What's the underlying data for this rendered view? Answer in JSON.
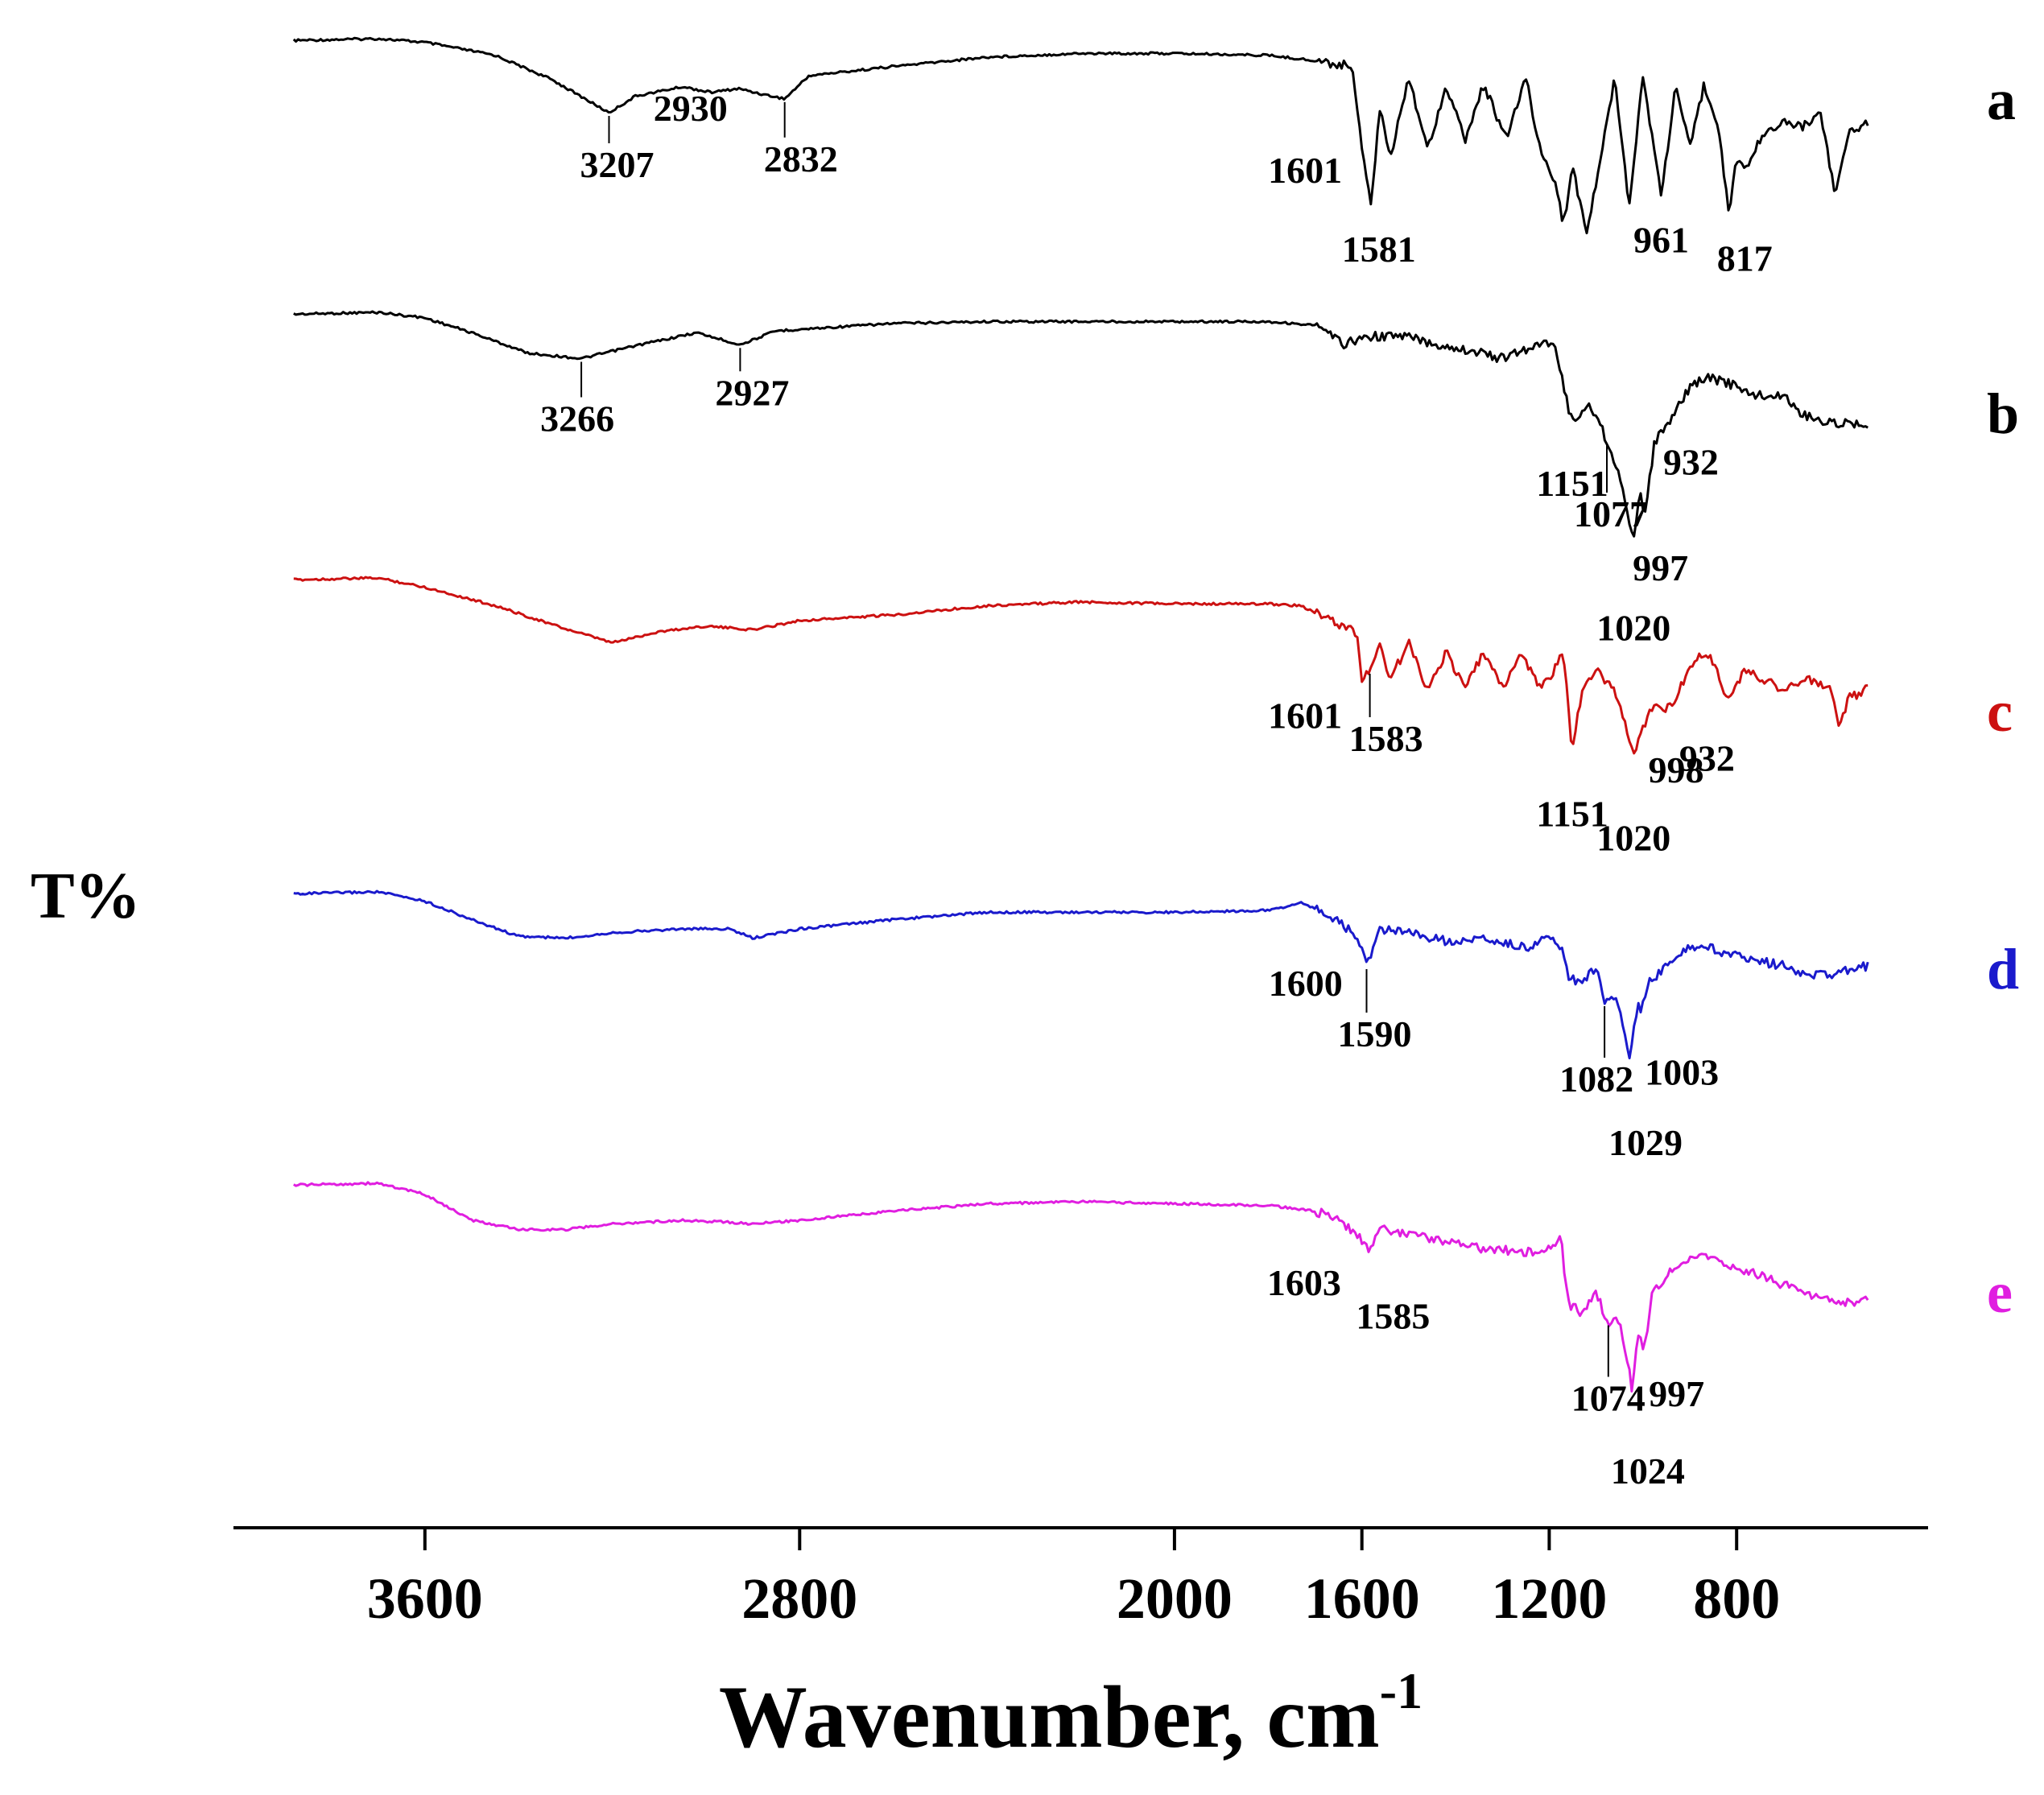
{
  "chart_data": {
    "type": "line",
    "title": "",
    "xlabel": "Wavenumber, cm",
    "xlabel_superscript": "-1",
    "ylabel": "T%",
    "xlim": [
      4000,
      400
    ],
    "x_reversed": true,
    "xticks": [
      3600,
      2800,
      2000,
      1600,
      1200,
      800
    ],
    "xtick_labels": [
      "3600",
      "2800",
      "2000",
      "1600",
      "1200",
      "800"
    ],
    "grid": false,
    "legend": "none",
    "series": [
      {
        "name": "a",
        "color": "#000000",
        "points": [
          [
            3880,
            0.02
          ],
          [
            3700,
            0.0
          ],
          [
            3600,
            0.04
          ],
          [
            3450,
            0.18
          ],
          [
            3330,
            0.44
          ],
          [
            3207,
            0.8
          ],
          [
            3150,
            0.62
          ],
          [
            3050,
            0.52
          ],
          [
            2990,
            0.58
          ],
          [
            2930,
            0.54
          ],
          [
            2880,
            0.6
          ],
          [
            2832,
            0.65
          ],
          [
            2780,
            0.4
          ],
          [
            2600,
            0.3
          ],
          [
            2400,
            0.2
          ],
          [
            2200,
            0.16
          ],
          [
            2000,
            0.16
          ],
          [
            1800,
            0.18
          ],
          [
            1730,
            0.22
          ],
          [
            1620,
            0.3
          ],
          [
            1601,
            1.12
          ],
          [
            1581,
            1.8
          ],
          [
            1560,
            0.7
          ],
          [
            1540,
            1.3
          ],
          [
            1500,
            0.4
          ],
          [
            1460,
            1.2
          ],
          [
            1420,
            0.5
          ],
          [
            1380,
            1.1
          ],
          [
            1340,
            0.5
          ],
          [
            1290,
            1.1
          ],
          [
            1250,
            0.4
          ],
          [
            1220,
            1.2
          ],
          [
            1190,
            1.5
          ],
          [
            1170,
            2.0
          ],
          [
            1150,
            1.4
          ],
          [
            1120,
            2.1
          ],
          [
            1090,
            1.3
          ],
          [
            1060,
            0.4
          ],
          [
            1030,
            1.8
          ],
          [
            1000,
            0.4
          ],
          [
            961,
            1.7
          ],
          [
            930,
            0.5
          ],
          [
            900,
            1.2
          ],
          [
            870,
            0.5
          ],
          [
            840,
            0.9
          ],
          [
            817,
            1.9
          ],
          [
            800,
            1.3
          ],
          [
            780,
            1.4
          ],
          [
            740,
            1.0
          ],
          [
            700,
            0.9
          ],
          [
            660,
            0.95
          ],
          [
            620,
            0.8
          ],
          [
            590,
            1.7
          ],
          [
            560,
            1.0
          ],
          [
            520,
            0.9
          ]
        ],
        "annotations": [
          {
            "label": "3207",
            "x": 3207
          },
          {
            "label": "2930",
            "x": 2930
          },
          {
            "label": "2832",
            "x": 2832
          },
          {
            "label": "1601",
            "x": 1601
          },
          {
            "label": "1581",
            "x": 1581
          },
          {
            "label": "961",
            "x": 961
          },
          {
            "label": "817",
            "x": 817
          }
        ]
      },
      {
        "name": "b",
        "color": "#000000",
        "points": [
          [
            3880,
            0.02
          ],
          [
            3700,
            0.0
          ],
          [
            3600,
            0.06
          ],
          [
            3500,
            0.22
          ],
          [
            3380,
            0.44
          ],
          [
            3266,
            0.5
          ],
          [
            3150,
            0.36
          ],
          [
            3020,
            0.22
          ],
          [
            2927,
            0.35
          ],
          [
            2850,
            0.2
          ],
          [
            2600,
            0.12
          ],
          [
            2400,
            0.1
          ],
          [
            2200,
            0.1
          ],
          [
            2000,
            0.1
          ],
          [
            1800,
            0.1
          ],
          [
            1700,
            0.14
          ],
          [
            1640,
            0.34
          ],
          [
            1580,
            0.26
          ],
          [
            1500,
            0.26
          ],
          [
            1450,
            0.34
          ],
          [
            1380,
            0.4
          ],
          [
            1300,
            0.5
          ],
          [
            1250,
            0.4
          ],
          [
            1190,
            0.3
          ],
          [
            1165,
            0.9
          ],
          [
            1151,
            1.2
          ],
          [
            1120,
            1.0
          ],
          [
            1100,
            1.1
          ],
          [
            1077,
            1.4
          ],
          [
            1060,
            1.6
          ],
          [
            1040,
            2.0
          ],
          [
            1020,
            2.5
          ],
          [
            1005,
            1.9
          ],
          [
            997,
            2.2
          ],
          [
            975,
            1.4
          ],
          [
            932,
            1.1
          ],
          [
            900,
            0.8
          ],
          [
            860,
            0.7
          ],
          [
            800,
            0.8
          ],
          [
            760,
            0.9
          ],
          [
            700,
            0.9
          ],
          [
            660,
            1.1
          ],
          [
            600,
            1.2
          ],
          [
            560,
            1.2
          ],
          [
            520,
            1.2
          ]
        ],
        "annotations": [
          {
            "label": "3266",
            "x": 3266
          },
          {
            "label": "2927",
            "x": 2927
          },
          {
            "label": "1151",
            "x": 1151
          },
          {
            "label": "1077",
            "x": 1077
          },
          {
            "label": "1020",
            "x": 1020
          },
          {
            "label": "997",
            "x": 997
          },
          {
            "label": "932",
            "x": 932
          }
        ]
      },
      {
        "name": "c",
        "color": "#cc1111",
        "points": [
          [
            3880,
            0.02
          ],
          [
            3700,
            0.0
          ],
          [
            3600,
            0.1
          ],
          [
            3450,
            0.3
          ],
          [
            3300,
            0.55
          ],
          [
            3200,
            0.7
          ],
          [
            3100,
            0.58
          ],
          [
            3000,
            0.52
          ],
          [
            2900,
            0.56
          ],
          [
            2800,
            0.46
          ],
          [
            2600,
            0.4
          ],
          [
            2400,
            0.3
          ],
          [
            2200,
            0.26
          ],
          [
            2000,
            0.28
          ],
          [
            1800,
            0.28
          ],
          [
            1730,
            0.3
          ],
          [
            1650,
            0.5
          ],
          [
            1610,
            0.6
          ],
          [
            1601,
            1.1
          ],
          [
            1583,
            1.0
          ],
          [
            1560,
            0.7
          ],
          [
            1540,
            1.1
          ],
          [
            1500,
            0.7
          ],
          [
            1460,
            1.2
          ],
          [
            1420,
            0.8
          ],
          [
            1380,
            1.2
          ],
          [
            1340,
            0.8
          ],
          [
            1300,
            1.2
          ],
          [
            1260,
            0.8
          ],
          [
            1220,
            1.2
          ],
          [
            1190,
            1.0
          ],
          [
            1170,
            0.8
          ],
          [
            1151,
            1.9
          ],
          [
            1130,
            1.2
          ],
          [
            1100,
            1.0
          ],
          [
            1060,
            1.2
          ],
          [
            1020,
            1.9
          ],
          [
            998,
            1.6
          ],
          [
            980,
            1.4
          ],
          [
            950,
            1.4
          ],
          [
            932,
            1.3
          ],
          [
            900,
            1.0
          ],
          [
            880,
            0.8
          ],
          [
            850,
            0.9
          ],
          [
            820,
            1.3
          ],
          [
            780,
            1.0
          ],
          [
            740,
            1.1
          ],
          [
            700,
            1.2
          ],
          [
            650,
            1.1
          ],
          [
            600,
            1.2
          ],
          [
            580,
            1.6
          ],
          [
            560,
            1.3
          ],
          [
            520,
            1.2
          ]
        ],
        "annotations": [
          {
            "label": "1601",
            "x": 1601
          },
          {
            "label": "1583",
            "x": 1583
          },
          {
            "label": "1151",
            "x": 1151
          },
          {
            "label": "1020",
            "x": 1020
          },
          {
            "label": "998",
            "x": 998
          },
          {
            "label": "932",
            "x": 932
          }
        ]
      },
      {
        "name": "d",
        "color": "#1a1acc",
        "points": [
          [
            3880,
            0.02
          ],
          [
            3700,
            0.0
          ],
          [
            3600,
            0.1
          ],
          [
            3500,
            0.3
          ],
          [
            3400,
            0.48
          ],
          [
            3300,
            0.5
          ],
          [
            3200,
            0.44
          ],
          [
            3050,
            0.4
          ],
          [
            2950,
            0.4
          ],
          [
            2900,
            0.5
          ],
          [
            2800,
            0.4
          ],
          [
            2600,
            0.3
          ],
          [
            2400,
            0.22
          ],
          [
            2200,
            0.22
          ],
          [
            2000,
            0.22
          ],
          [
            1800,
            0.2
          ],
          [
            1730,
            0.12
          ],
          [
            1680,
            0.22
          ],
          [
            1630,
            0.4
          ],
          [
            1600,
            0.6
          ],
          [
            1590,
            0.8
          ],
          [
            1560,
            0.4
          ],
          [
            1500,
            0.45
          ],
          [
            1450,
            0.5
          ],
          [
            1400,
            0.55
          ],
          [
            1350,
            0.5
          ],
          [
            1300,
            0.55
          ],
          [
            1250,
            0.6
          ],
          [
            1200,
            0.5
          ],
          [
            1175,
            0.6
          ],
          [
            1160,
            0.9
          ],
          [
            1130,
            1.0
          ],
          [
            1100,
            0.8
          ],
          [
            1082,
            1.2
          ],
          [
            1060,
            1.1
          ],
          [
            1040,
            1.5
          ],
          [
            1029,
            1.8
          ],
          [
            1010,
            1.2
          ],
          [
            1003,
            1.3
          ],
          [
            990,
            1.0
          ],
          [
            950,
            0.8
          ],
          [
            900,
            0.6
          ],
          [
            860,
            0.6
          ],
          [
            800,
            0.7
          ],
          [
            750,
            0.75
          ],
          [
            700,
            0.8
          ],
          [
            650,
            0.9
          ],
          [
            600,
            0.9
          ],
          [
            560,
            0.85
          ],
          [
            520,
            0.8
          ]
        ],
        "annotations": [
          {
            "label": "1600",
            "x": 1600
          },
          {
            "label": "1590",
            "x": 1590
          },
          {
            "label": "1082",
            "x": 1082
          },
          {
            "label": "1029",
            "x": 1029
          },
          {
            "label": "1003",
            "x": 1003
          }
        ]
      },
      {
        "name": "e",
        "color": "#e01ee0",
        "points": [
          [
            3880,
            0.02
          ],
          [
            3700,
            0.0
          ],
          [
            3600,
            0.12
          ],
          [
            3500,
            0.4
          ],
          [
            3400,
            0.5
          ],
          [
            3300,
            0.5
          ],
          [
            3200,
            0.44
          ],
          [
            3050,
            0.4
          ],
          [
            2950,
            0.42
          ],
          [
            2900,
            0.44
          ],
          [
            2800,
            0.4
          ],
          [
            2600,
            0.3
          ],
          [
            2400,
            0.22
          ],
          [
            2200,
            0.2
          ],
          [
            2000,
            0.22
          ],
          [
            1800,
            0.24
          ],
          [
            1700,
            0.3
          ],
          [
            1650,
            0.4
          ],
          [
            1603,
            0.6
          ],
          [
            1585,
            0.7
          ],
          [
            1560,
            0.5
          ],
          [
            1500,
            0.55
          ],
          [
            1450,
            0.6
          ],
          [
            1400,
            0.65
          ],
          [
            1350,
            0.7
          ],
          [
            1300,
            0.72
          ],
          [
            1250,
            0.75
          ],
          [
            1200,
            0.7
          ],
          [
            1175,
            0.6
          ],
          [
            1160,
            1.3
          ],
          [
            1130,
            1.4
          ],
          [
            1100,
            1.2
          ],
          [
            1074,
            1.5
          ],
          [
            1050,
            1.5
          ],
          [
            1030,
            2.0
          ],
          [
            1024,
            2.2
          ],
          [
            1010,
            1.6
          ],
          [
            997,
            1.8
          ],
          [
            980,
            1.2
          ],
          [
            950,
            1.0
          ],
          [
            900,
            0.8
          ],
          [
            860,
            0.8
          ],
          [
            800,
            0.9
          ],
          [
            750,
            1.0
          ],
          [
            700,
            1.1
          ],
          [
            650,
            1.2
          ],
          [
            600,
            1.25
          ],
          [
            560,
            1.3
          ],
          [
            520,
            1.25
          ]
        ],
        "annotations": [
          {
            "label": "1603",
            "x": 1603
          },
          {
            "label": "1585",
            "x": 1585
          },
          {
            "label": "1074",
            "x": 1074
          },
          {
            "label": "1024",
            "x": 1024
          },
          {
            "label": "997",
            "x": 997
          }
        ]
      }
    ]
  }
}
